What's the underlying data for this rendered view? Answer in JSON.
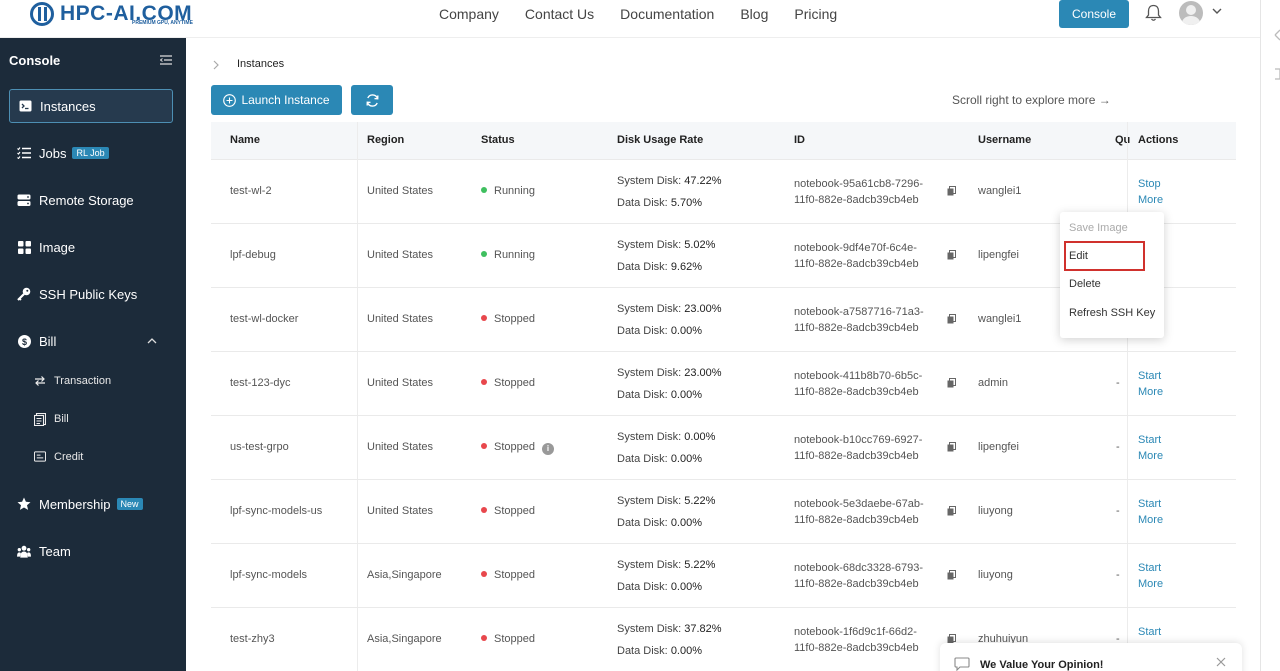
{
  "header": {
    "logo_text": "HPC-AI.COM",
    "logo_tagline": "PREMIUM GPU, ANYTIME",
    "nav": [
      "Company",
      "Contact Us",
      "Documentation",
      "Blog",
      "Pricing"
    ],
    "console_label": "Console"
  },
  "sidebar": {
    "title": "Console",
    "items": [
      {
        "label": "Instances",
        "icon": "terminal-icon"
      },
      {
        "label": "Jobs",
        "icon": "list-icon",
        "tag": "RL Job"
      },
      {
        "label": "Remote Storage",
        "icon": "storage-icon"
      },
      {
        "label": "Image",
        "icon": "grid-icon"
      },
      {
        "label": "SSH Public Keys",
        "icon": "key-icon"
      },
      {
        "label": "Bill",
        "icon": "dollar-icon"
      },
      {
        "label": "Membership",
        "icon": "star-icon",
        "tag": "New"
      },
      {
        "label": "Team",
        "icon": "team-icon"
      }
    ],
    "bill_sub": [
      "Transaction",
      "Bill",
      "Credit"
    ]
  },
  "page": {
    "breadcrumb": "Instances",
    "launch_label": "Launch Instance",
    "scroll_hint": "Scroll right to explore more →"
  },
  "table": {
    "columns": [
      "Name",
      "Region",
      "Status",
      "Disk Usage Rate",
      "ID",
      "Username",
      "Qu",
      "Actions"
    ],
    "system_disk_label": "System Disk:",
    "data_disk_label": "Data Disk:",
    "rows": [
      {
        "name": "test-wl-2",
        "region": "United States",
        "status": "Running",
        "system_disk": "47.22%",
        "data_disk": "5.70%",
        "id_line1": "notebook-95a61cb8-7296-",
        "id_line2": "11f0-882e-8adcb39cb4eb",
        "username": "wanglei1",
        "quota": "",
        "action1": "Stop",
        "action2": "More"
      },
      {
        "name": "lpf-debug",
        "region": "United States",
        "status": "Running",
        "system_disk": "5.02%",
        "data_disk": "9.62%",
        "id_line1": "notebook-9df4e70f-6c4e-",
        "id_line2": "11f0-882e-8adcb39cb4eb",
        "username": "lipengfei",
        "quota": "",
        "action1": "",
        "action2": ""
      },
      {
        "name": "test-wl-docker",
        "region": "United States",
        "status": "Stopped",
        "system_disk": "23.00%",
        "data_disk": "0.00%",
        "id_line1": "notebook-a7587716-71a3-",
        "id_line2": "11f0-882e-8adcb39cb4eb",
        "username": "wanglei1",
        "quota": "",
        "action1": "",
        "action2": ""
      },
      {
        "name": "test-123-dyc",
        "region": "United States",
        "status": "Stopped",
        "system_disk": "23.00%",
        "data_disk": "0.00%",
        "id_line1": "notebook-411b8b70-6b5c-",
        "id_line2": "11f0-882e-8adcb39cb4eb",
        "username": "admin",
        "quota": "-",
        "action1": "Start",
        "action2": "More"
      },
      {
        "name": "us-test-grpo",
        "region": "United States",
        "status": "Stopped",
        "system_disk": "0.00%",
        "data_disk": "0.00%",
        "id_line1": "notebook-b10cc769-6927-",
        "id_line2": "11f0-882e-8adcb39cb4eb",
        "username": "lipengfei",
        "quota": "-",
        "action1": "Start",
        "action2": "More"
      },
      {
        "name": "lpf-sync-models-us",
        "region": "United States",
        "status": "Stopped",
        "system_disk": "5.22%",
        "data_disk": "0.00%",
        "id_line1": "notebook-5e3daebe-67ab-",
        "id_line2": "11f0-882e-8adcb39cb4eb",
        "username": "liuyong",
        "quota": "-",
        "action1": "Start",
        "action2": "More"
      },
      {
        "name": "lpf-sync-models",
        "region": "Asia,Singapore",
        "status": "Stopped",
        "system_disk": "5.22%",
        "data_disk": "0.00%",
        "id_line1": "notebook-68dc3328-6793-",
        "id_line2": "11f0-882e-8adcb39cb4eb",
        "username": "liuyong",
        "quota": "-",
        "action1": "Start",
        "action2": "More"
      },
      {
        "name": "test-zhy3",
        "region": "Asia,Singapore",
        "status": "Stopped",
        "system_disk": "37.82%",
        "data_disk": "0.00%",
        "id_line1": "notebook-1f6d9c1f-66d2-",
        "id_line2": "11f0-882e-8adcb39cb4eb",
        "username": "zhuhuiyun",
        "quota": "-",
        "action1": "Start",
        "action2": ""
      }
    ]
  },
  "dropdown": {
    "items": [
      "Save Image",
      "Edit",
      "Delete",
      "Refresh SSH Key"
    ],
    "partial_more": "More"
  },
  "feedback": {
    "title": "We Value Your Opinion!"
  },
  "colors": {
    "accent": "#2b88b5",
    "sidebar_bg": "#1c2b3a",
    "running": "#3fbf5f",
    "stopped": "#e8474c",
    "highlight": "#d0312d"
  }
}
